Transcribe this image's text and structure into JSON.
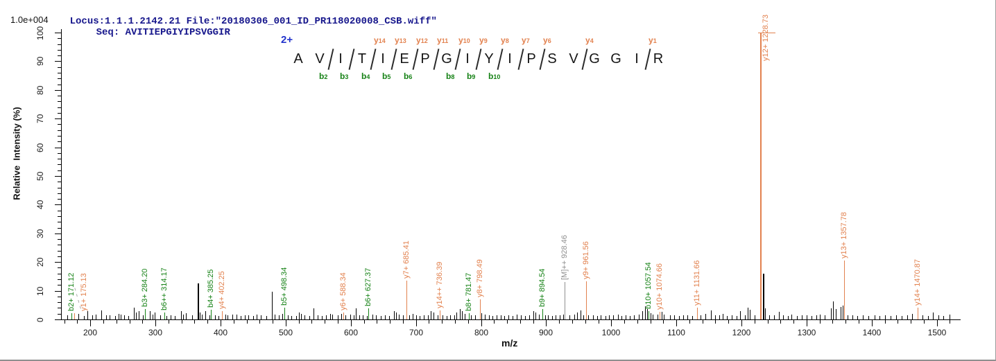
{
  "header": {
    "locus_file": "Locus:1.1.1.2142.21 File:\"20180306_001_ID_PR118020008_CSB.wiff\"",
    "seq": "Seq: AVITIEPGIYIPSVGGIR"
  },
  "scale_note": "1.0e+004",
  "colors": {
    "y_ion": "#e2814e",
    "b_ion": "#168216",
    "precursor": "#8f8f8f",
    "noise_peak": "#000000",
    "header_text": "#16168c",
    "charge_label": "#2233cc",
    "axis": "#000000"
  },
  "sequence_panel": {
    "charge": "2+",
    "residues": [
      "A",
      "V",
      "I",
      "T",
      "I",
      "E",
      "P",
      "G",
      "I",
      "Y",
      "I",
      "P",
      "S",
      "V",
      "G",
      "G",
      "I",
      "R"
    ],
    "cleavages": [
      {
        "after": 2,
        "b": "b2"
      },
      {
        "after": 3,
        "b": "b3"
      },
      {
        "after": 4,
        "b": "b4",
        "y": "y14"
      },
      {
        "after": 5,
        "b": "b5",
        "y": "y13"
      },
      {
        "after": 6,
        "b": "b6",
        "y": "y12"
      },
      {
        "after": 7,
        "y": "y11"
      },
      {
        "after": 8,
        "b": "b8",
        "y": "y10"
      },
      {
        "after": 9,
        "b": "b9",
        "y": "y9"
      },
      {
        "after": 10,
        "b": "b10",
        "y": "y8"
      },
      {
        "after": 11,
        "y": "y7"
      },
      {
        "after": 12,
        "y": "y6"
      },
      {
        "after": 14,
        "y": "y4"
      },
      {
        "after": 17,
        "y": "y1"
      }
    ]
  },
  "chart_data": {
    "type": "bar",
    "subtype": "ms2_peak_spectrum",
    "title": "",
    "xlabel": "m/z",
    "ylabel": "Relative  Intensity (%)",
    "x_axis": {
      "min": 155,
      "max": 1536,
      "major_ticks": [
        200,
        300,
        400,
        500,
        600,
        700,
        800,
        900,
        1000,
        1100,
        1200,
        1300,
        1400,
        1500
      ],
      "minor_step": 20
    },
    "y_axis": {
      "min": 0,
      "max": 100,
      "major_ticks": [
        0,
        10,
        20,
        30,
        40,
        50,
        60,
        70,
        80,
        90,
        100
      ],
      "minor_step": 2
    },
    "labeled_peaks": [
      {
        "label": "b2+ 171.12",
        "mz": 171.12,
        "intensity": 2.2,
        "type": "b"
      },
      {
        "label": "y1+ 175.13",
        "mz": 175.13,
        "intensity": 2.2,
        "type": "y",
        "label_dx": 14,
        "dashed_leader": true
      },
      {
        "label": "b3+ 284.20",
        "mz": 284.2,
        "intensity": 3.6,
        "type": "b"
      },
      {
        "label": "b6++ 314.17",
        "mz": 314.17,
        "intensity": 2.4,
        "type": "b"
      },
      {
        "label": "b4+ 385.25",
        "mz": 385.25,
        "intensity": 3.4,
        "type": "b"
      },
      {
        "label": "y4+ 402.25",
        "mz": 402.25,
        "intensity": 3.0,
        "type": "y"
      },
      {
        "label": "b5+ 498.34",
        "mz": 498.34,
        "intensity": 4.0,
        "type": "b"
      },
      {
        "label": "y6+ 588.34",
        "mz": 588.34,
        "intensity": 2.4,
        "type": "y"
      },
      {
        "label": "b6+ 627.37",
        "mz": 627.37,
        "intensity": 3.8,
        "type": "b"
      },
      {
        "label": "y7+ 685.41",
        "mz": 685.41,
        "intensity": 13.5,
        "type": "y"
      },
      {
        "label": "y14++ 736.39",
        "mz": 736.39,
        "intensity": 3.2,
        "type": "y"
      },
      {
        "label": "b8+ 781.47",
        "mz": 781.47,
        "intensity": 2.2,
        "type": "b"
      },
      {
        "label": "y8+ 798.49",
        "mz": 798.49,
        "intensity": 7.0,
        "type": "y"
      },
      {
        "label": "b9+ 894.54",
        "mz": 894.54,
        "intensity": 3.6,
        "type": "b"
      },
      {
        "label": "[M]++ 928.46",
        "mz": 928.46,
        "intensity": 13.0,
        "type": "precursor"
      },
      {
        "label": "y9+ 961.56",
        "mz": 961.56,
        "intensity": 13.3,
        "type": "y"
      },
      {
        "label": "b10+ 1057.54",
        "mz": 1057.54,
        "intensity": 3.0,
        "type": "b"
      },
      {
        "label": "y10+ 1074.66",
        "mz": 1074.66,
        "intensity": 2.6,
        "type": "y"
      },
      {
        "label": "y11+ 1131.66",
        "mz": 1131.66,
        "intensity": 4.2,
        "type": "y"
      },
      {
        "label": "y12+ 1228.73",
        "mz": 1228.73,
        "intensity": 100,
        "type": "y",
        "label_side": "right"
      },
      {
        "label": "y13+ 1357.78",
        "mz": 1357.78,
        "intensity": 20.5,
        "type": "y"
      },
      {
        "label": "y14+ 1470.87",
        "mz": 1470.87,
        "intensity": 4.0,
        "type": "y"
      }
    ],
    "unlabeled_peaks": [
      [
        165,
        1.4
      ],
      [
        182,
        2.0
      ],
      [
        190,
        1.2
      ],
      [
        196,
        3.0
      ],
      [
        203,
        1.4
      ],
      [
        208,
        1.8
      ],
      [
        217,
        3.2
      ],
      [
        224,
        1.5
      ],
      [
        230,
        1.4
      ],
      [
        238,
        1.2
      ],
      [
        243,
        2.0
      ],
      [
        247,
        1.6
      ],
      [
        252,
        1.4
      ],
      [
        258,
        1.2
      ],
      [
        267,
        4.2
      ],
      [
        270,
        2.4
      ],
      [
        274,
        3.0
      ],
      [
        281,
        1.5
      ],
      [
        291,
        2.8
      ],
      [
        296,
        1.6
      ],
      [
        299,
        2.4
      ],
      [
        307,
        1.4
      ],
      [
        317,
        1.3
      ],
      [
        323,
        1.4
      ],
      [
        330,
        1.2
      ],
      [
        339,
        2.8
      ],
      [
        343,
        1.8
      ],
      [
        347,
        2.2
      ],
      [
        356,
        1.4
      ],
      [
        365,
        12.5
      ],
      [
        368,
        2.5
      ],
      [
        371,
        1.6
      ],
      [
        377,
        2.8
      ],
      [
        383,
        1.5
      ],
      [
        391,
        1.4
      ],
      [
        397,
        1.3
      ],
      [
        407,
        1.8
      ],
      [
        411,
        1.4
      ],
      [
        418,
        1.6
      ],
      [
        424,
        1.6
      ],
      [
        431,
        1.3
      ],
      [
        437,
        1.4
      ],
      [
        443,
        1.5
      ],
      [
        450,
        1.3
      ],
      [
        455,
        1.6
      ],
      [
        462,
        1.4
      ],
      [
        470,
        1.3
      ],
      [
        479,
        9.6
      ],
      [
        483,
        1.8
      ],
      [
        490,
        1.5
      ],
      [
        495,
        1.9
      ],
      [
        503,
        1.4
      ],
      [
        509,
        1.3
      ],
      [
        516,
        1.3
      ],
      [
        520,
        2.4
      ],
      [
        524,
        2.0
      ],
      [
        529,
        1.5
      ],
      [
        536,
        1.3
      ],
      [
        543,
        3.8
      ],
      [
        549,
        1.5
      ],
      [
        556,
        1.3
      ],
      [
        562,
        1.4
      ],
      [
        568,
        1.9
      ],
      [
        572,
        1.6
      ],
      [
        580,
        1.4
      ],
      [
        585,
        2.0
      ],
      [
        592,
        1.4
      ],
      [
        599,
        1.6
      ],
      [
        604,
        1.5
      ],
      [
        608,
        3.8
      ],
      [
        613,
        1.5
      ],
      [
        618,
        1.4
      ],
      [
        625,
        1.3
      ],
      [
        633,
        1.7
      ],
      [
        639,
        1.4
      ],
      [
        646,
        1.3
      ],
      [
        652,
        1.5
      ],
      [
        659,
        1.3
      ],
      [
        666,
        2.8
      ],
      [
        670,
        2.4
      ],
      [
        674,
        1.7
      ],
      [
        680,
        1.4
      ],
      [
        690,
        1.5
      ],
      [
        695,
        1.9
      ],
      [
        700,
        1.4
      ],
      [
        706,
        1.3
      ],
      [
        712,
        1.4
      ],
      [
        718,
        1.5
      ],
      [
        723,
        2.8
      ],
      [
        727,
        2.4
      ],
      [
        733,
        1.5
      ],
      [
        741,
        1.4
      ],
      [
        747,
        1.3
      ],
      [
        753,
        1.4
      ],
      [
        759,
        1.5
      ],
      [
        762,
        2.4
      ],
      [
        767,
        3.6
      ],
      [
        771,
        3.0
      ],
      [
        775,
        2.0
      ],
      [
        785,
        1.4
      ],
      [
        791,
        1.5
      ],
      [
        801,
        2.2
      ],
      [
        806,
        1.6
      ],
      [
        812,
        1.4
      ],
      [
        818,
        1.3
      ],
      [
        824,
        1.4
      ],
      [
        830,
        1.5
      ],
      [
        836,
        1.3
      ],
      [
        842,
        1.4
      ],
      [
        848,
        1.3
      ],
      [
        855,
        1.8
      ],
      [
        861,
        1.5
      ],
      [
        868,
        1.3
      ],
      [
        874,
        1.4
      ],
      [
        880,
        2.8
      ],
      [
        884,
        2.4
      ],
      [
        889,
        1.6
      ],
      [
        898,
        1.4
      ],
      [
        903,
        1.5
      ],
      [
        909,
        1.3
      ],
      [
        915,
        1.4
      ],
      [
        921,
        1.5
      ],
      [
        926,
        1.8
      ],
      [
        936,
        1.4
      ],
      [
        943,
        1.7
      ],
      [
        948,
        2.4
      ],
      [
        953,
        3.2
      ],
      [
        957,
        1.5
      ],
      [
        965,
        1.4
      ],
      [
        972,
        1.5
      ],
      [
        978,
        1.3
      ],
      [
        984,
        1.4
      ],
      [
        991,
        1.3
      ],
      [
        997,
        1.5
      ],
      [
        1003,
        1.4
      ],
      [
        1010,
        1.7
      ],
      [
        1016,
        1.3
      ],
      [
        1022,
        1.4
      ],
      [
        1028,
        1.3
      ],
      [
        1035,
        1.4
      ],
      [
        1042,
        1.8
      ],
      [
        1048,
        3.0
      ],
      [
        1052,
        4.6
      ],
      [
        1055,
        3.6
      ],
      [
        1060,
        2.2
      ],
      [
        1064,
        1.8
      ],
      [
        1071,
        1.6
      ],
      [
        1077,
        2.6
      ],
      [
        1081,
        1.8
      ],
      [
        1090,
        1.5
      ],
      [
        1097,
        1.4
      ],
      [
        1104,
        1.3
      ],
      [
        1110,
        1.4
      ],
      [
        1117,
        1.5
      ],
      [
        1124,
        1.3
      ],
      [
        1137,
        1.4
      ],
      [
        1145,
        1.9
      ],
      [
        1153,
        3.2
      ],
      [
        1160,
        1.4
      ],
      [
        1166,
        1.5
      ],
      [
        1171,
        1.9
      ],
      [
        1178,
        1.3
      ],
      [
        1185,
        1.4
      ],
      [
        1192,
        1.3
      ],
      [
        1198,
        2.8
      ],
      [
        1205,
        1.5
      ],
      [
        1210,
        4.2
      ],
      [
        1213,
        3.4
      ],
      [
        1220,
        1.5
      ],
      [
        1233,
        16.0
      ],
      [
        1236,
        3.8
      ],
      [
        1243,
        1.5
      ],
      [
        1250,
        1.4
      ],
      [
        1257,
        2.6
      ],
      [
        1264,
        1.4
      ],
      [
        1271,
        1.3
      ],
      [
        1277,
        1.7
      ],
      [
        1285,
        1.3
      ],
      [
        1293,
        1.4
      ],
      [
        1300,
        1.4
      ],
      [
        1308,
        1.3
      ],
      [
        1315,
        1.4
      ],
      [
        1320,
        1.8
      ],
      [
        1328,
        1.4
      ],
      [
        1337,
        3.8
      ],
      [
        1341,
        6.2
      ],
      [
        1345,
        3.6
      ],
      [
        1352,
        4.4
      ],
      [
        1356,
        4.8
      ],
      [
        1363,
        1.5
      ],
      [
        1370,
        1.4
      ],
      [
        1378,
        1.3
      ],
      [
        1386,
        1.4
      ],
      [
        1395,
        1.3
      ],
      [
        1404,
        1.4
      ],
      [
        1412,
        1.3
      ],
      [
        1420,
        1.4
      ],
      [
        1429,
        1.3
      ],
      [
        1437,
        1.4
      ],
      [
        1446,
        1.3
      ],
      [
        1455,
        1.4
      ],
      [
        1462,
        2.0
      ],
      [
        1470,
        1.6
      ],
      [
        1478,
        1.4
      ],
      [
        1486,
        1.3
      ],
      [
        1494,
        2.4
      ],
      [
        1502,
        1.4
      ],
      [
        1510,
        1.3
      ],
      [
        1520,
        1.7
      ]
    ]
  }
}
